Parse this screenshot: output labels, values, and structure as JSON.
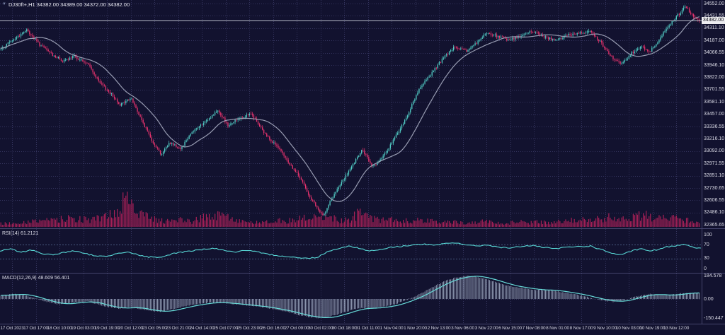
{
  "header": {
    "collapse_icon": "▼",
    "symbol_ohlc": "DJ30ft+,H1 34382.00 34389.00 34372.00 34382.00"
  },
  "price_axis": {
    "labels": [
      "34552.00",
      "34431.55",
      "34311.10",
      "34187.00",
      "34066.55",
      "33946.10",
      "33822.00",
      "33701.55",
      "33581.10",
      "33457.00",
      "33336.55",
      "33216.10",
      "33092.00",
      "32971.55",
      "32851.10",
      "32730.65",
      "32606.55",
      "32486.10",
      "32365.65"
    ],
    "current_price": "34382.00"
  },
  "time_axis": {
    "labels": [
      "17 Oct 2023",
      "17 Oct 17:00",
      "18 Oct 10:00",
      "19 Oct 03:00",
      "19 Oct 19:00",
      "20 Oct 12:00",
      "23 Oct 05:00",
      "23 Oct 21:00",
      "24 Oct 14:00",
      "25 Oct 07:00",
      "25 Oct 23:00",
      "26 Oct 16:00",
      "27 Oct 09:00",
      "30 Oct 02:00",
      "30 Oct 18:00",
      "31 Oct 11:00",
      "1 Nov 04:00",
      "1 Nov 20:00",
      "2 Nov 13:00",
      "3 Nov 06:00",
      "3 Nov 22:00",
      "6 Nov 15:00",
      "7 Nov 08:00",
      "8 Nov 01:00",
      "8 Nov 17:00",
      "9 Nov 10:00",
      "10 Nov 03:00",
      "10 Nov 19:00",
      "13 Nov 12:00"
    ]
  },
  "panes": {
    "rsi": {
      "label": "RSI(14) 61.2121",
      "scale_labels": [
        "100",
        "70",
        "30",
        "0"
      ],
      "levels": [
        70,
        30
      ]
    },
    "macd": {
      "label": "MACD(12,26,9) 48.609 56.401",
      "scale_labels": [
        "184.578",
        "0.00",
        "-150.447"
      ]
    }
  },
  "colors": {
    "background": "#12122f",
    "grid": "#34345e",
    "bull": "#53d0c8",
    "bear": "#e8336e",
    "volume": "#a82057",
    "ma_line": "#9fa3b8",
    "rsi_line": "#58d8d6",
    "macd_histogram": "#bac7de",
    "macd_signal": "#68dcd9",
    "axis_text": "#dadae6",
    "current_price_line": "#b9bcc9",
    "current_price_box": "#ececf0",
    "separator": "#45456d",
    "levels": "#47587e"
  },
  "chart_data": [
    {
      "type": "candlestick",
      "title": "DJ30ft+",
      "timeframe": "H1",
      "x_range": [
        "17 Oct 2023",
        "13 Nov 12:00"
      ],
      "ylim": [
        32365.65,
        34552.0
      ],
      "last_bar": {
        "open": 34382.0,
        "high": 34389.0,
        "low": 34372.0,
        "close": 34382.0
      },
      "overlays": [
        {
          "name": "moving-average",
          "color": "#9fa3b8"
        }
      ],
      "close_path": [
        [
          0,
          34100
        ],
        [
          0.012,
          34160
        ],
        [
          0.038,
          34290
        ],
        [
          0.056,
          34150
        ],
        [
          0.076,
          34040
        ],
        [
          0.091,
          33980
        ],
        [
          0.106,
          34030
        ],
        [
          0.126,
          33950
        ],
        [
          0.141,
          33780
        ],
        [
          0.157,
          33670
        ],
        [
          0.172,
          33550
        ],
        [
          0.187,
          33620
        ],
        [
          0.202,
          33400
        ],
        [
          0.217,
          33200
        ],
        [
          0.23,
          33060
        ],
        [
          0.242,
          33180
        ],
        [
          0.258,
          33120
        ],
        [
          0.273,
          33280
        ],
        [
          0.293,
          33380
        ],
        [
          0.311,
          33500
        ],
        [
          0.325,
          33350
        ],
        [
          0.341,
          33420
        ],
        [
          0.359,
          33460
        ],
        [
          0.376,
          33280
        ],
        [
          0.394,
          33150
        ],
        [
          0.412,
          32980
        ],
        [
          0.429,
          32820
        ],
        [
          0.444,
          32620
        ],
        [
          0.46,
          32450
        ],
        [
          0.473,
          32620
        ],
        [
          0.487,
          32780
        ],
        [
          0.503,
          32950
        ],
        [
          0.517,
          33110
        ],
        [
          0.531,
          32940
        ],
        [
          0.545,
          33020
        ],
        [
          0.561,
          33200
        ],
        [
          0.578,
          33400
        ],
        [
          0.596,
          33680
        ],
        [
          0.614,
          33850
        ],
        [
          0.631,
          34000
        ],
        [
          0.648,
          34120
        ],
        [
          0.665,
          34080
        ],
        [
          0.679,
          34160
        ],
        [
          0.695,
          34260
        ],
        [
          0.709,
          34230
        ],
        [
          0.725,
          34190
        ],
        [
          0.742,
          34230
        ],
        [
          0.76,
          34280
        ],
        [
          0.776,
          34230
        ],
        [
          0.793,
          34180
        ],
        [
          0.808,
          34240
        ],
        [
          0.826,
          34260
        ],
        [
          0.843,
          34280
        ],
        [
          0.859,
          34150
        ],
        [
          0.875,
          34000
        ],
        [
          0.887,
          33950
        ],
        [
          0.901,
          34060
        ],
        [
          0.914,
          34130
        ],
        [
          0.927,
          34080
        ],
        [
          0.939,
          34180
        ],
        [
          0.952,
          34320
        ],
        [
          0.965,
          34420
        ],
        [
          0.978,
          34520
        ],
        [
          0.99,
          34420
        ],
        [
          1,
          34382
        ]
      ],
      "volume_rel": [
        [
          0,
          0.1
        ],
        [
          0.08,
          0.22
        ],
        [
          0.1,
          0.3
        ],
        [
          0.115,
          0.25
        ],
        [
          0.13,
          0.22
        ],
        [
          0.145,
          0.3
        ],
        [
          0.16,
          0.45
        ],
        [
          0.172,
          0.55
        ],
        [
          0.177,
          1.0
        ],
        [
          0.184,
          0.7
        ],
        [
          0.192,
          0.6
        ],
        [
          0.202,
          0.45
        ],
        [
          0.212,
          0.3
        ],
        [
          0.227,
          0.22
        ],
        [
          0.242,
          0.18
        ],
        [
          0.258,
          0.26
        ],
        [
          0.273,
          0.18
        ],
        [
          0.288,
          0.3
        ],
        [
          0.303,
          0.4
        ],
        [
          0.318,
          0.35
        ],
        [
          0.333,
          0.26
        ],
        [
          0.348,
          0.18
        ],
        [
          0.363,
          0.13
        ],
        [
          0.379,
          0.18
        ],
        [
          0.394,
          0.22
        ],
        [
          0.409,
          0.18
        ],
        [
          0.424,
          0.26
        ],
        [
          0.439,
          0.3
        ],
        [
          0.455,
          0.4
        ],
        [
          0.47,
          0.3
        ],
        [
          0.485,
          0.22
        ],
        [
          0.5,
          0.26
        ],
        [
          0.515,
          0.5
        ],
        [
          0.525,
          0.35
        ],
        [
          0.54,
          0.22
        ],
        [
          0.556,
          0.26
        ],
        [
          0.571,
          0.22
        ],
        [
          0.586,
          0.18
        ],
        [
          0.601,
          0.22
        ],
        [
          0.616,
          0.18
        ],
        [
          0.631,
          0.15
        ],
        [
          0.646,
          0.18
        ],
        [
          0.662,
          0.13
        ],
        [
          0.677,
          0.13
        ],
        [
          0.692,
          0.18
        ],
        [
          0.707,
          0.13
        ],
        [
          0.722,
          0.11
        ],
        [
          0.737,
          0.18
        ],
        [
          0.752,
          0.13
        ],
        [
          0.768,
          0.18
        ],
        [
          0.783,
          0.13
        ],
        [
          0.798,
          0.18
        ],
        [
          0.813,
          0.22
        ],
        [
          0.828,
          0.26
        ],
        [
          0.843,
          0.22
        ],
        [
          0.858,
          0.26
        ],
        [
          0.874,
          0.35
        ],
        [
          0.889,
          0.26
        ],
        [
          0.904,
          0.3
        ],
        [
          0.919,
          0.4
        ],
        [
          0.934,
          0.26
        ],
        [
          0.949,
          0.3
        ],
        [
          0.965,
          0.26
        ],
        [
          0.98,
          0.22
        ],
        [
          1,
          0.13
        ]
      ]
    },
    {
      "type": "line",
      "name": "RSI(14)",
      "current": 61.2121,
      "ylim": [
        0,
        100
      ],
      "levels": [
        30,
        70
      ],
      "points": [
        [
          0,
          52
        ],
        [
          0.015,
          58
        ],
        [
          0.03,
          48
        ],
        [
          0.045,
          55
        ],
        [
          0.061,
          44
        ],
        [
          0.076,
          40
        ],
        [
          0.091,
          48
        ],
        [
          0.106,
          52
        ],
        [
          0.121,
          44
        ],
        [
          0.136,
          38
        ],
        [
          0.152,
          35
        ],
        [
          0.167,
          45
        ],
        [
          0.182,
          50
        ],
        [
          0.197,
          40
        ],
        [
          0.212,
          34
        ],
        [
          0.23,
          32
        ],
        [
          0.247,
          45
        ],
        [
          0.265,
          50
        ],
        [
          0.283,
          55
        ],
        [
          0.303,
          60
        ],
        [
          0.318,
          55
        ],
        [
          0.333,
          48
        ],
        [
          0.348,
          53
        ],
        [
          0.364,
          50
        ],
        [
          0.382,
          42
        ],
        [
          0.399,
          38
        ],
        [
          0.416,
          34
        ],
        [
          0.434,
          30
        ],
        [
          0.453,
          33
        ],
        [
          0.465,
          48
        ],
        [
          0.48,
          58
        ],
        [
          0.495,
          66
        ],
        [
          0.51,
          62
        ],
        [
          0.525,
          52
        ],
        [
          0.54,
          55
        ],
        [
          0.556,
          62
        ],
        [
          0.574,
          66
        ],
        [
          0.591,
          70
        ],
        [
          0.606,
          72
        ],
        [
          0.621,
          68
        ],
        [
          0.636,
          74
        ],
        [
          0.652,
          76
        ],
        [
          0.665,
          70
        ],
        [
          0.679,
          66
        ],
        [
          0.695,
          70
        ],
        [
          0.709,
          64
        ],
        [
          0.725,
          60
        ],
        [
          0.742,
          65
        ],
        [
          0.76,
          68
        ],
        [
          0.776,
          62
        ],
        [
          0.793,
          58
        ],
        [
          0.808,
          63
        ],
        [
          0.826,
          65
        ],
        [
          0.843,
          66
        ],
        [
          0.859,
          55
        ],
        [
          0.875,
          44
        ],
        [
          0.887,
          40
        ],
        [
          0.901,
          52
        ],
        [
          0.914,
          58
        ],
        [
          0.927,
          52
        ],
        [
          0.939,
          56
        ],
        [
          0.952,
          64
        ],
        [
          0.965,
          68
        ],
        [
          0.978,
          72
        ],
        [
          0.99,
          62
        ],
        [
          1,
          61.21
        ]
      ]
    },
    {
      "type": "macd",
      "name": "MACD(12,26,9)",
      "main": 48.609,
      "signal": 56.401,
      "ylim": [
        -150.447,
        184.578
      ],
      "points": [
        [
          0,
          25
        ],
        [
          0.02,
          40
        ],
        [
          0.035,
          30
        ],
        [
          0.051,
          5
        ],
        [
          0.066,
          -20
        ],
        [
          0.081,
          -40
        ],
        [
          0.096,
          -35
        ],
        [
          0.111,
          -25
        ],
        [
          0.126,
          -20
        ],
        [
          0.141,
          -45
        ],
        [
          0.157,
          -65
        ],
        [
          0.172,
          -75
        ],
        [
          0.187,
          -65
        ],
        [
          0.202,
          -80
        ],
        [
          0.217,
          -95
        ],
        [
          0.23,
          -100
        ],
        [
          0.247,
          -80
        ],
        [
          0.265,
          -55
        ],
        [
          0.283,
          -40
        ],
        [
          0.301,
          -28
        ],
        [
          0.318,
          -30
        ],
        [
          0.333,
          -40
        ],
        [
          0.352,
          -50
        ],
        [
          0.369,
          -60
        ],
        [
          0.386,
          -75
        ],
        [
          0.404,
          -95
        ],
        [
          0.422,
          -120
        ],
        [
          0.439,
          -140
        ],
        [
          0.455,
          -150
        ],
        [
          0.47,
          -140
        ],
        [
          0.485,
          -115
        ],
        [
          0.5,
          -90
        ],
        [
          0.515,
          -70
        ],
        [
          0.53,
          -72
        ],
        [
          0.545,
          -65
        ],
        [
          0.561,
          -45
        ],
        [
          0.576,
          -15
        ],
        [
          0.591,
          15
        ],
        [
          0.606,
          60
        ],
        [
          0.621,
          105
        ],
        [
          0.636,
          145
        ],
        [
          0.652,
          172
        ],
        [
          0.665,
          185
        ],
        [
          0.677,
          178
        ],
        [
          0.692,
          160
        ],
        [
          0.707,
          135
        ],
        [
          0.722,
          110
        ],
        [
          0.737,
          92
        ],
        [
          0.752,
          80
        ],
        [
          0.768,
          72
        ],
        [
          0.783,
          68
        ],
        [
          0.798,
          58
        ],
        [
          0.813,
          45
        ],
        [
          0.828,
          28
        ],
        [
          0.843,
          8
        ],
        [
          0.859,
          -12
        ],
        [
          0.874,
          -22
        ],
        [
          0.887,
          -15
        ],
        [
          0.901,
          8
        ],
        [
          0.914,
          28
        ],
        [
          0.928,
          38
        ],
        [
          0.939,
          34
        ],
        [
          0.952,
          30
        ],
        [
          0.965,
          38
        ],
        [
          0.978,
          48
        ],
        [
          0.99,
          50
        ],
        [
          1,
          48.61
        ]
      ]
    }
  ]
}
